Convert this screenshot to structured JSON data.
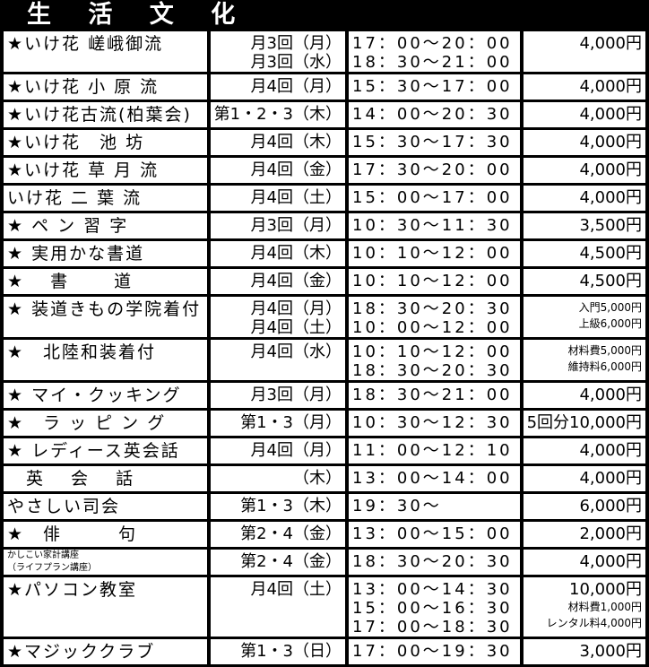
{
  "title": "生 活 文 化",
  "rows": [
    {
      "name": [
        "★いけ花 嵯峨御流"
      ],
      "days": [
        "月3回（月）",
        "月3回（水）"
      ],
      "times": [
        "17：00〜20：00",
        "18：30〜21：00"
      ],
      "fees": [
        "4,000円"
      ]
    },
    {
      "name": [
        "★いけ花 小 原 流"
      ],
      "days": [
        "月4回（月）"
      ],
      "times": [
        "15：30〜17：00"
      ],
      "fees": [
        "4,000円"
      ]
    },
    {
      "name": [
        "★いけ花古流(柏葉会)"
      ],
      "days": [
        "第1・2・3（木）"
      ],
      "times": [
        "14：00〜20：30"
      ],
      "fees": [
        "4,000円"
      ]
    },
    {
      "name": [
        "★いけ花　池 坊"
      ],
      "days": [
        "月4回（木）"
      ],
      "times": [
        "15：30〜17：30"
      ],
      "fees": [
        "4,000円"
      ]
    },
    {
      "name": [
        "★いけ花 草 月 流"
      ],
      "days": [
        "月4回（金）"
      ],
      "times": [
        "17：30〜20：00"
      ],
      "fees": [
        "4,000円"
      ]
    },
    {
      "name": [
        "いけ花 二 葉 流"
      ],
      "days": [
        "月4回（土）"
      ],
      "times": [
        "15：00〜17：00"
      ],
      "fees": [
        "4,000円"
      ]
    },
    {
      "name": [
        "★ ペ ン 習 字"
      ],
      "days": [
        "月3回（月）"
      ],
      "times": [
        "10：30〜11：30"
      ],
      "fees": [
        "3,500円"
      ]
    },
    {
      "name": [
        "★ 実用かな書道"
      ],
      "days": [
        "月4回（木）"
      ],
      "times": [
        "10：10〜12：00"
      ],
      "fees": [
        "4,500円"
      ]
    },
    {
      "name": [
        "★　 書　　 道"
      ],
      "days": [
        "月4回（金）"
      ],
      "times": [
        "10：10〜12：00"
      ],
      "fees": [
        "4,500円"
      ]
    },
    {
      "name": [
        "★ 装道きもの学院着付"
      ],
      "days": [
        "月4回（月）",
        "月4回（土）"
      ],
      "times": [
        "18：30〜20：30",
        "10：00〜12：00"
      ],
      "fees_small": [
        "入門5,000円",
        "上級6,000円"
      ]
    },
    {
      "name": [
        "★　北陸和装着付"
      ],
      "days": [
        "月4回（水）"
      ],
      "times": [
        "10：10〜12：00",
        "18：30〜20：30"
      ],
      "fees_small": [
        "材料費5,000円",
        "維持料6,000円"
      ]
    },
    {
      "name": [
        "★ マイ・クッキング"
      ],
      "days": [
        "月3回（月）"
      ],
      "times": [
        "18：30〜21：00"
      ],
      "fees": [
        "4,000円"
      ]
    },
    {
      "name": [
        "★　ラ ッ ピ ン グ"
      ],
      "days": [
        "第1・3（月）"
      ],
      "times": [
        "10：30〜12：30"
      ],
      "fees": [
        "5回分10,000円"
      ]
    },
    {
      "name": [
        "★ レディース英会話"
      ],
      "days": [
        "月4回（月）"
      ],
      "times": [
        "11：00〜12：10"
      ],
      "fees": [
        "4,000円"
      ]
    },
    {
      "name": [
        "　英　 会　 話"
      ],
      "days": [
        "（木）"
      ],
      "times": [
        "13：00〜14：00"
      ],
      "fees": [
        "4,000円"
      ]
    },
    {
      "name": [
        "やさしい司会"
      ],
      "days": [
        "第1・3（木）"
      ],
      "times": [
        "19：30〜"
      ],
      "fees": [
        "6,000円"
      ]
    },
    {
      "name": [
        "★　俳　　　句"
      ],
      "days": [
        "第2・4（金）"
      ],
      "times": [
        "13：00〜15：00"
      ],
      "fees": [
        "2,000円"
      ]
    },
    {
      "name_small": [
        "かしこい家計講座",
        "（ライフプラン講座）"
      ],
      "days": [
        "第2・4（金）"
      ],
      "times": [
        "18：30〜20：30"
      ],
      "fees": [
        "4,000円"
      ]
    },
    {
      "name": [
        "★パソコン教室"
      ],
      "days": [
        "月4回（土）"
      ],
      "times": [
        "13：00〜14：30",
        "15：00〜16：30",
        "17：00〜18：30"
      ],
      "fees": [
        "10,000円"
      ],
      "fees_small": [
        "材料費1,000円",
        "レンタル料4,000円"
      ]
    },
    {
      "name": [
        "★マジッククラブ"
      ],
      "days": [
        "第1・3（日）"
      ],
      "times": [
        "17：00〜19：30"
      ],
      "fees": [
        "3,000円"
      ]
    }
  ]
}
